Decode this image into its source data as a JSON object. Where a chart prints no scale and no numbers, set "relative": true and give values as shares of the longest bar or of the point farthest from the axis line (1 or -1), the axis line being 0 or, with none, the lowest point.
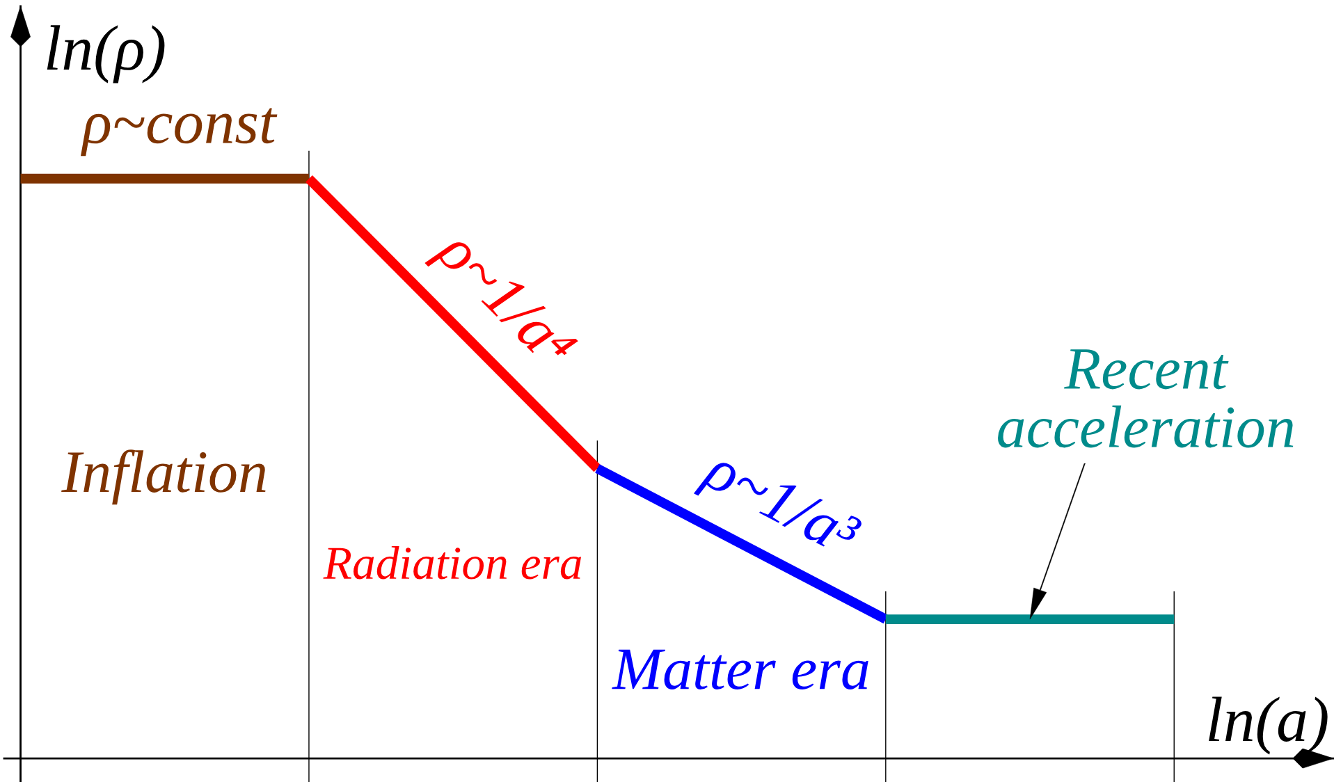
{
  "chart_data": {
    "type": "line",
    "relative": true,
    "grid": "x",
    "xlabel": "ln(a)",
    "ylabel": "ln(ρ)",
    "categories": [
      null,
      null,
      null,
      null,
      null
    ],
    "series": [
      {
        "name": "ρ~const",
        "color": "#7f3300",
        "values": [
          1,
          1,
          null,
          null,
          null
        ]
      },
      {
        "name": "ρ~1/a⁴",
        "color": "#ff0000",
        "values": [
          null,
          1,
          0.5,
          null,
          null
        ]
      },
      {
        "name": "ρ~1/a³",
        "color": "#0000ff",
        "values": [
          null,
          null,
          0.5,
          0.24,
          null
        ]
      },
      {
        "color": "#008b8b",
        "values": [
          null,
          null,
          null,
          0.24,
          0.24
        ]
      }
    ],
    "annotations": [
      "Inflation",
      "Radiation era",
      "Matter era",
      "Recent\nacceleration"
    ]
  }
}
